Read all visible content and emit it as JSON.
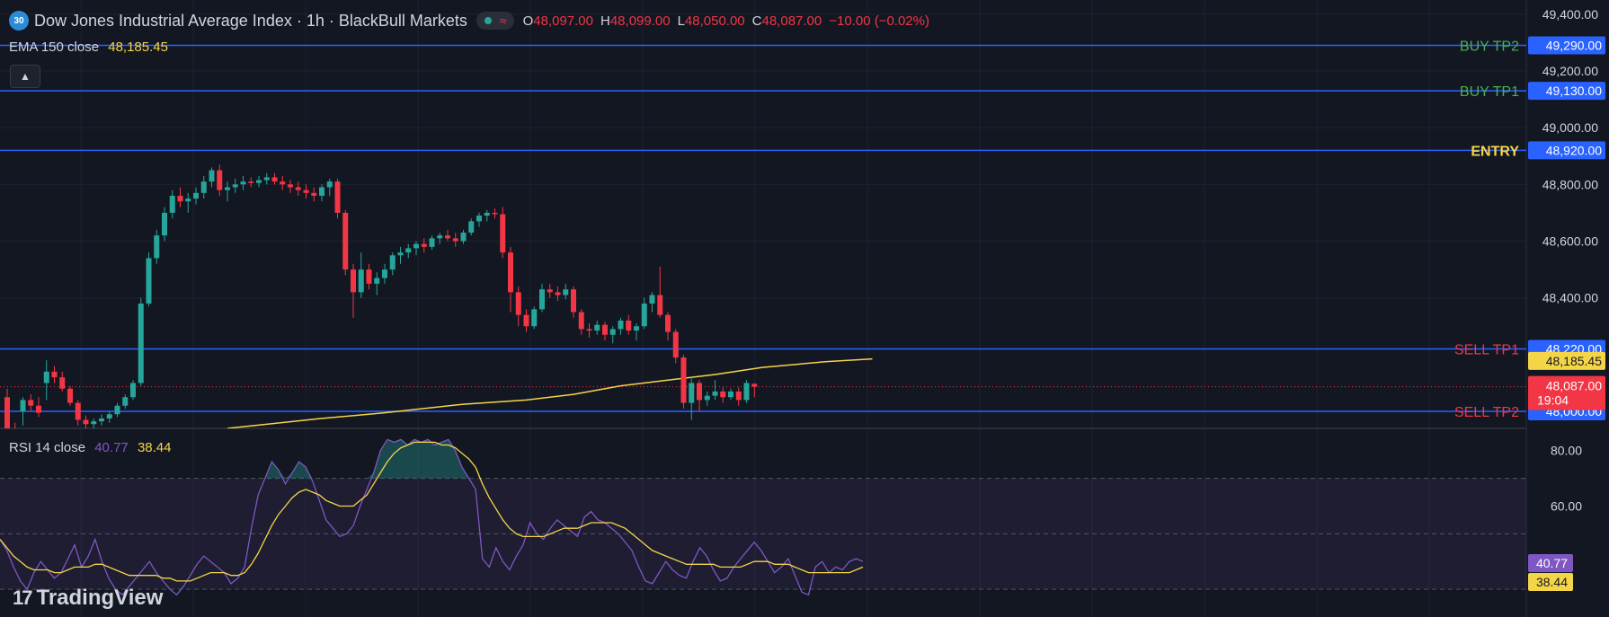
{
  "header": {
    "badge": "30",
    "title": "Dow Jones Industrial Average Index · 1h · BlackBull Markets",
    "wave": "≈",
    "open_key": "O",
    "open": "48,097.00",
    "high_key": "H",
    "high": "48,099.00",
    "low_key": "L",
    "low": "48,050.00",
    "close_key": "C",
    "close": "48,087.00",
    "change": "−10.00 (−0.02%)"
  },
  "ema_legend": {
    "label": "EMA 150 close",
    "value": "48,185.45"
  },
  "rsi_legend": {
    "label": "RSI 14 close",
    "rsi": "40.77",
    "ma": "38.44"
  },
  "collapse_icon": "chevron-up-icon",
  "logo": {
    "text": "TradingView"
  },
  "colors": {
    "background": "#131722",
    "up": "#26a69a",
    "down": "#f23645",
    "level_line": "#2962ff",
    "ema": "#f5d548",
    "rsi": "#7e57c2",
    "buy_label": "#4caf50",
    "sell_label": "#f23645",
    "entry_label": "#f5d548"
  },
  "chart_data": [
    {
      "type": "candlestick",
      "title": "Dow Jones Industrial Average Index · 1h · BlackBull Markets",
      "ylim": [
        47940,
        49450
      ],
      "y_ticks": [
        {
          "v": 49400,
          "label": "49,400.00"
        },
        {
          "v": 49200,
          "label": "49,200.00"
        },
        {
          "v": 49000,
          "label": "49,000.00"
        },
        {
          "v": 48800,
          "label": "48,800.00"
        },
        {
          "v": 48600,
          "label": "48,600.00"
        },
        {
          "v": 48400,
          "label": "48,400.00"
        }
      ],
      "levels": [
        {
          "name": "BUY TP2",
          "value": 49290,
          "price_label": "49,290.00",
          "kind": "buy"
        },
        {
          "name": "BUY TP1",
          "value": 49130,
          "price_label": "49,130.00",
          "kind": "buy"
        },
        {
          "name": "ENTRY",
          "value": 48920,
          "price_label": "48,920.00",
          "kind": "entry"
        },
        {
          "name": "SELL TP1",
          "value": 48220,
          "price_label": "48,220.00",
          "kind": "sell"
        },
        {
          "name": "SELL TP2",
          "value": 48000,
          "price_label": "48,000.00",
          "kind": "sell"
        }
      ],
      "ema_label": "48,185.45",
      "last_price": {
        "value": 48087,
        "label": "48,087.00",
        "countdown": "19:04"
      },
      "candles": [
        [
          48050,
          48080,
          47900,
          47920
        ],
        [
          47920,
          47960,
          47850,
          47870
        ],
        [
          48000,
          48050,
          47950,
          48040
        ],
        [
          48040,
          48060,
          48000,
          48020
        ],
        [
          48020,
          48050,
          47980,
          47995
        ],
        [
          48100,
          48180,
          48040,
          48140
        ],
        [
          48140,
          48160,
          48100,
          48120
        ],
        [
          48120,
          48140,
          48070,
          48080
        ],
        [
          48080,
          48090,
          48020,
          48030
        ],
        [
          48030,
          48040,
          47950,
          47970
        ],
        [
          47970,
          47985,
          47940,
          47955
        ],
        [
          47955,
          47975,
          47935,
          47965
        ],
        [
          47965,
          47990,
          47950,
          47975
        ],
        [
          47975,
          48000,
          47960,
          47990
        ],
        [
          47990,
          48030,
          47980,
          48020
        ],
        [
          48020,
          48060,
          48010,
          48050
        ],
        [
          48050,
          48110,
          48040,
          48100
        ],
        [
          48100,
          48400,
          48090,
          48380
        ],
        [
          48380,
          48560,
          48370,
          48540
        ],
        [
          48540,
          48640,
          48520,
          48620
        ],
        [
          48620,
          48720,
          48600,
          48700
        ],
        [
          48700,
          48780,
          48680,
          48760
        ],
        [
          48760,
          48790,
          48720,
          48740
        ],
        [
          48740,
          48770,
          48700,
          48750
        ],
        [
          48750,
          48790,
          48730,
          48770
        ],
        [
          48770,
          48830,
          48750,
          48810
        ],
        [
          48810,
          48860,
          48790,
          48850
        ],
        [
          48850,
          48870,
          48760,
          48780
        ],
        [
          48780,
          48810,
          48740,
          48790
        ],
        [
          48790,
          48820,
          48770,
          48800
        ],
        [
          48800,
          48830,
          48780,
          48810
        ],
        [
          48810,
          48825,
          48790,
          48805
        ],
        [
          48805,
          48830,
          48790,
          48815
        ],
        [
          48815,
          48840,
          48800,
          48825
        ],
        [
          48825,
          48840,
          48800,
          48810
        ],
        [
          48810,
          48830,
          48780,
          48800
        ],
        [
          48800,
          48815,
          48770,
          48790
        ],
        [
          48790,
          48810,
          48760,
          48780
        ],
        [
          48780,
          48800,
          48750,
          48770
        ],
        [
          48770,
          48790,
          48740,
          48760
        ],
        [
          48760,
          48800,
          48740,
          48790
        ],
        [
          48790,
          48820,
          48760,
          48810
        ],
        [
          48810,
          48820,
          48680,
          48700
        ],
        [
          48700,
          48710,
          48480,
          48500
        ],
        [
          48500,
          48520,
          48330,
          48420
        ],
        [
          48420,
          48560,
          48400,
          48500
        ],
        [
          48500,
          48520,
          48430,
          48450
        ],
        [
          48450,
          48490,
          48410,
          48470
        ],
        [
          48470,
          48520,
          48450,
          48500
        ],
        [
          48500,
          48560,
          48480,
          48550
        ],
        [
          48550,
          48580,
          48520,
          48560
        ],
        [
          48560,
          48590,
          48540,
          48575
        ],
        [
          48575,
          48600,
          48550,
          48590
        ],
        [
          48590,
          48610,
          48560,
          48580
        ],
        [
          48580,
          48620,
          48570,
          48610
        ],
        [
          48610,
          48630,
          48590,
          48620
        ],
        [
          48620,
          48640,
          48600,
          48610
        ],
        [
          48610,
          48630,
          48580,
          48600
        ],
        [
          48600,
          48640,
          48590,
          48630
        ],
        [
          48630,
          48680,
          48620,
          48670
        ],
        [
          48670,
          48700,
          48650,
          48690
        ],
        [
          48690,
          48710,
          48670,
          48700
        ],
        [
          48700,
          48715,
          48680,
          48695
        ],
        [
          48695,
          48720,
          48540,
          48560
        ],
        [
          48560,
          48580,
          48350,
          48420
        ],
        [
          48420,
          48440,
          48300,
          48340
        ],
        [
          48340,
          48360,
          48280,
          48300
        ],
        [
          48300,
          48370,
          48290,
          48360
        ],
        [
          48360,
          48450,
          48350,
          48430
        ],
        [
          48430,
          48450,
          48400,
          48420
        ],
        [
          48420,
          48440,
          48390,
          48410
        ],
        [
          48410,
          48450,
          48395,
          48430
        ],
        [
          48430,
          48440,
          48330,
          48350
        ],
        [
          48350,
          48360,
          48270,
          48290
        ],
        [
          48290,
          48310,
          48260,
          48285
        ],
        [
          48285,
          48320,
          48270,
          48305
        ],
        [
          48305,
          48315,
          48250,
          48270
        ],
        [
          48270,
          48300,
          48240,
          48290
        ],
        [
          48290,
          48330,
          48270,
          48320
        ],
        [
          48320,
          48340,
          48270,
          48285
        ],
        [
          48285,
          48310,
          48250,
          48300
        ],
        [
          48300,
          48400,
          48290,
          48380
        ],
        [
          48380,
          48420,
          48350,
          48410
        ],
        [
          48410,
          48510,
          48330,
          48340
        ],
        [
          48340,
          48350,
          48250,
          48280
        ],
        [
          48280,
          48290,
          48170,
          48190
        ],
        [
          48190,
          48200,
          48010,
          48030
        ],
        [
          48030,
          48120,
          47970,
          48100
        ],
        [
          48100,
          48110,
          48000,
          48040
        ],
        [
          48040,
          48070,
          48020,
          48055
        ],
        [
          48055,
          48110,
          48040,
          48070
        ],
        [
          48070,
          48085,
          48030,
          48050
        ],
        [
          48050,
          48080,
          48040,
          48070
        ],
        [
          48070,
          48085,
          48020,
          48040
        ],
        [
          48040,
          48110,
          48030,
          48100
        ],
        [
          48097,
          48099,
          48050,
          48087
        ]
      ],
      "ema": [
        [
          28,
          47940
        ],
        [
          40,
          47975
        ],
        [
          48,
          47995
        ],
        [
          58,
          48025
        ],
        [
          66,
          48040
        ],
        [
          72,
          48060
        ],
        [
          78,
          48090
        ],
        [
          84,
          48110
        ],
        [
          90,
          48130
        ],
        [
          96,
          48155
        ],
        [
          104,
          48175
        ],
        [
          110,
          48185
        ]
      ]
    },
    {
      "type": "line",
      "title": "RSI 14 close",
      "ylim": [
        20,
        88
      ],
      "y_ticks": [
        {
          "v": 80,
          "label": "80.00"
        },
        {
          "v": 60,
          "label": "60.00"
        }
      ],
      "band": [
        30,
        70
      ],
      "midline": 50,
      "rsi_label": "40.77",
      "ma_label": "38.44",
      "series": [
        {
          "values": [
            48,
            44,
            38,
            33,
            30,
            36,
            40,
            37,
            34,
            36,
            41,
            46,
            38,
            42,
            48,
            40,
            34,
            30,
            28,
            31,
            34,
            37,
            40,
            36,
            33,
            30,
            28,
            31,
            35,
            39,
            42,
            40,
            38,
            36,
            32,
            34,
            38,
            52,
            64,
            70,
            76,
            73,
            68,
            72,
            76,
            74,
            69,
            62,
            55,
            52,
            49,
            50,
            53,
            60,
            66,
            72,
            80,
            84,
            83,
            84,
            82,
            84,
            83,
            84,
            82,
            83,
            84,
            80,
            74,
            70,
            66,
            41,
            38,
            45,
            40,
            37,
            42,
            46,
            54,
            50,
            48,
            52,
            55,
            53,
            51,
            49,
            56,
            58,
            55,
            54,
            52,
            50,
            47,
            44,
            38,
            33,
            32,
            36,
            40,
            37,
            35,
            34,
            40,
            45,
            42,
            37,
            33,
            34,
            38,
            41,
            44,
            47,
            44,
            40,
            36,
            38,
            41,
            35,
            29,
            28,
            38,
            40,
            36,
            38,
            37,
            40,
            41,
            40
          ]
        },
        {
          "values": [
            48,
            45,
            42,
            40,
            38,
            37,
            37,
            37,
            36,
            36,
            37,
            38,
            38,
            38,
            39,
            39,
            38,
            37,
            36,
            35,
            35,
            35,
            35,
            35,
            34,
            34,
            33,
            33,
            33,
            34,
            35,
            36,
            36,
            36,
            35,
            35,
            36,
            39,
            43,
            48,
            53,
            57,
            60,
            63,
            65,
            66,
            65,
            64,
            62,
            61,
            60,
            60,
            60,
            62,
            64,
            68,
            72,
            76,
            79,
            81,
            82,
            83,
            83,
            83,
            83,
            82,
            82,
            81,
            79,
            77,
            74,
            68,
            63,
            59,
            55,
            52,
            50,
            49,
            49,
            49,
            49,
            50,
            51,
            52,
            52,
            52,
            53,
            54,
            54,
            54,
            54,
            53,
            52,
            50,
            48,
            46,
            44,
            43,
            42,
            41,
            40,
            39,
            39,
            39,
            39,
            39,
            38,
            38,
            38,
            38,
            39,
            40,
            40,
            40,
            39,
            39,
            39,
            38,
            37,
            36,
            36,
            36,
            36,
            36,
            36,
            36,
            37,
            38
          ]
        }
      ]
    }
  ]
}
